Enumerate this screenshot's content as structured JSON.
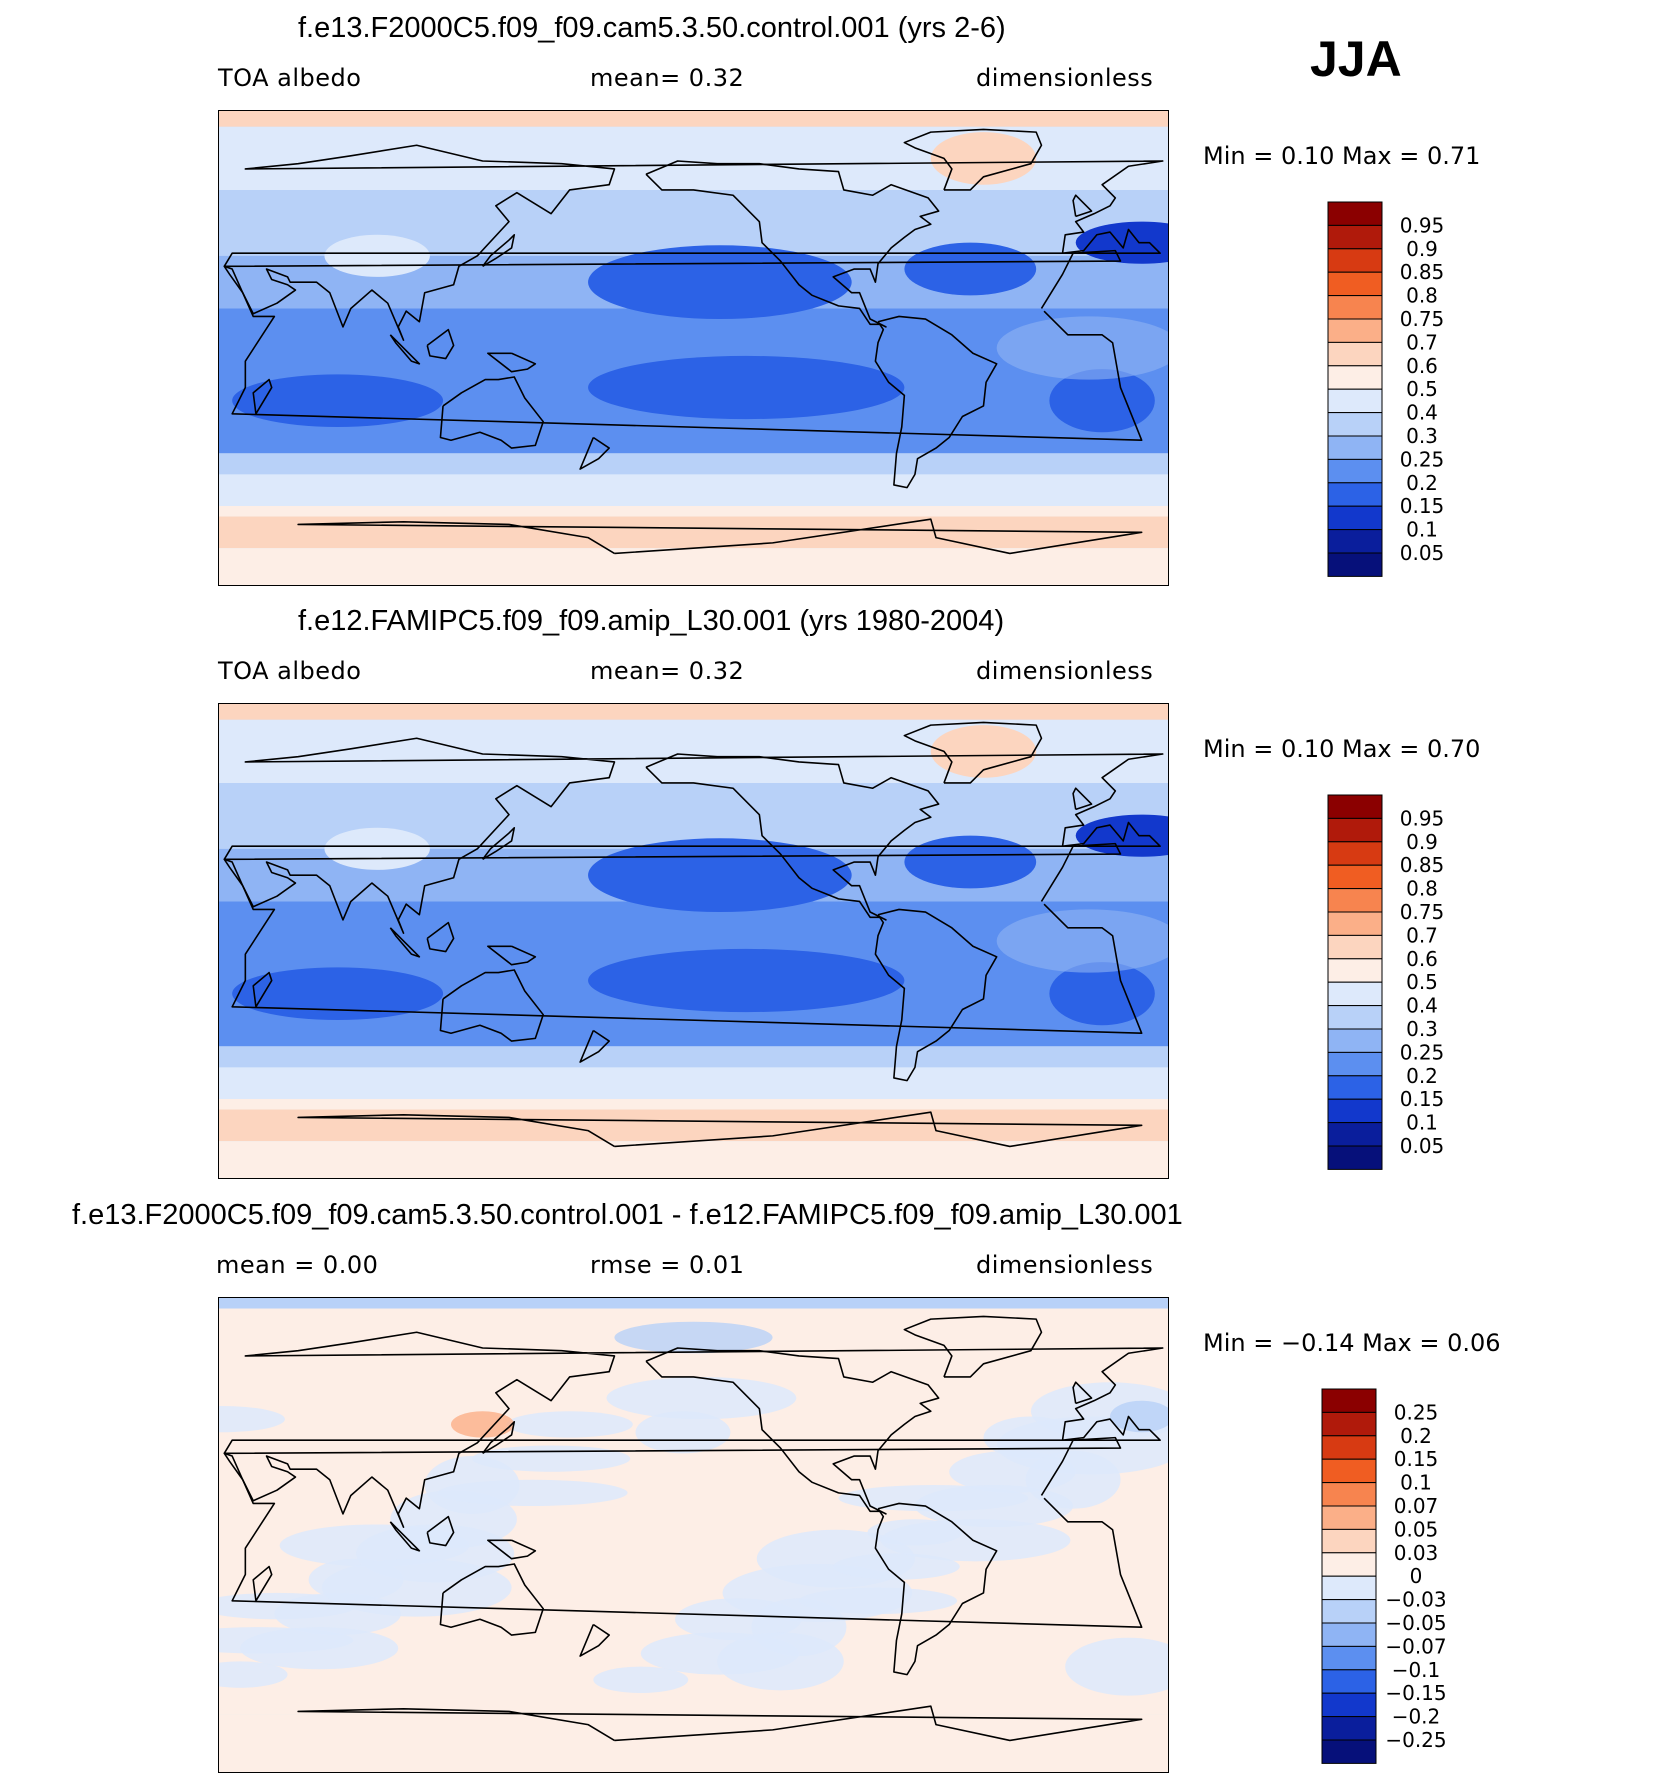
{
  "season": "JJA",
  "units": "dimensionless",
  "panels": [
    {
      "title": "f.e13.F2000C5.f09_f09.cam5.3.50.control.001 (yrs 2-6)",
      "left_label": "TOA albedo",
      "center_label": "mean=    0.32",
      "right_label": "dimensionless",
      "minmax": "Min =     0.10  Max =     0.71",
      "colorbar": {
        "labels": [
          "0.95",
          "0.9",
          "0.85",
          "0.8",
          "0.75",
          "0.7",
          "0.6",
          "0.5",
          "0.4",
          "0.3",
          "0.25",
          "0.2",
          "0.15",
          "0.1",
          "0.05"
        ],
        "colors": [
          "#8b0000",
          "#b01a0b",
          "#d73a12",
          "#f05d22",
          "#f7844f",
          "#fbaf88",
          "#fcd5bf",
          "#fdeee6",
          "#dde9fb",
          "#b8d1f8",
          "#8fb4f4",
          "#5c8ff0",
          "#2c62e6",
          "#1238cc",
          "#0a1e9c",
          "#06107a"
        ]
      },
      "map_style": "field"
    },
    {
      "title": "f.e12.FAMIPC5.f09_f09.amip_L30.001 (yrs 1980-2004)",
      "left_label": "TOA albedo",
      "center_label": "mean=    0.32",
      "right_label": "dimensionless",
      "minmax": "Min =     0.10  Max =     0.70",
      "colorbar": {
        "labels": [
          "0.95",
          "0.9",
          "0.85",
          "0.8",
          "0.75",
          "0.7",
          "0.6",
          "0.5",
          "0.4",
          "0.3",
          "0.25",
          "0.2",
          "0.15",
          "0.1",
          "0.05"
        ],
        "colors": [
          "#8b0000",
          "#b01a0b",
          "#d73a12",
          "#f05d22",
          "#f7844f",
          "#fbaf88",
          "#fcd5bf",
          "#fdeee6",
          "#dde9fb",
          "#b8d1f8",
          "#8fb4f4",
          "#5c8ff0",
          "#2c62e6",
          "#1238cc",
          "#0a1e9c",
          "#06107a"
        ]
      },
      "map_style": "field"
    },
    {
      "title": "f.e13.F2000C5.f09_f09.cam5.3.50.control.001 - f.e12.FAMIPC5.f09_f09.amip_L30.001",
      "left_label": "mean =     0.00",
      "center_label": "rmse =     0.01",
      "right_label": "dimensionless",
      "minmax": "Min =   −0.14  Max =     0.06",
      "colorbar": {
        "labels": [
          "0.25",
          "0.2",
          "0.15",
          "0.1",
          "0.07",
          "0.05",
          "0.03",
          "0",
          "−0.03",
          "−0.05",
          "−0.07",
          "−0.1",
          "−0.15",
          "−0.2",
          "−0.25"
        ],
        "colors": [
          "#8b0000",
          "#b01a0b",
          "#d73a12",
          "#f05d22",
          "#f7844f",
          "#fbaf88",
          "#fcd5bf",
          "#fdeee6",
          "#dde9fb",
          "#b8d1f8",
          "#8fb4f4",
          "#5c8ff0",
          "#2c62e6",
          "#1238cc",
          "#0a1e9c",
          "#06107a"
        ]
      },
      "map_style": "diff"
    }
  ]
}
